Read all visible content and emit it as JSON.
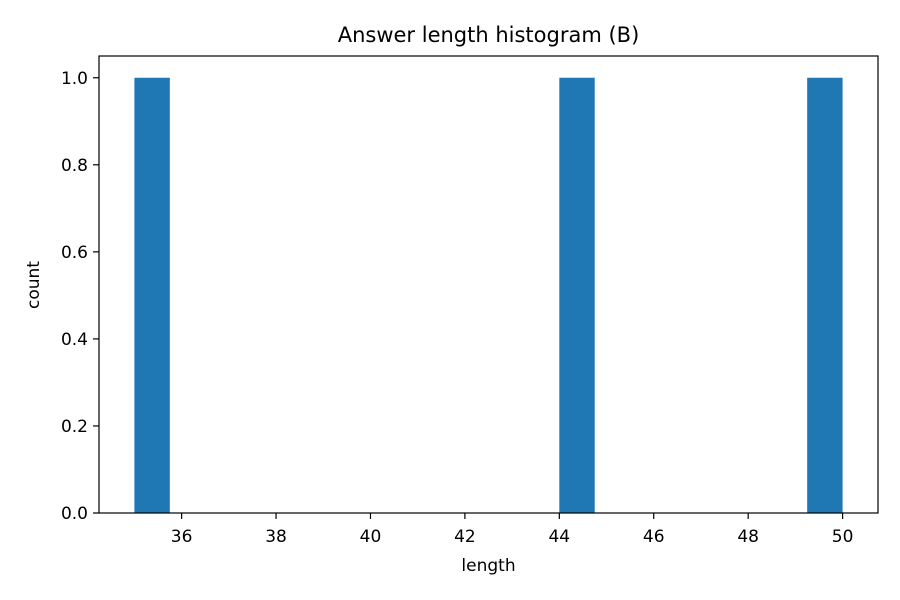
{
  "chart_data": {
    "type": "bar",
    "title": "Answer length histogram (B)",
    "xlabel": "length",
    "ylabel": "count",
    "xlim": [
      34.25,
      50.75
    ],
    "ylim": [
      0,
      1.05
    ],
    "xticks": [
      "36",
      "38",
      "40",
      "42",
      "44",
      "46",
      "48",
      "50"
    ],
    "yticks": [
      "0.0",
      "0.2",
      "0.4",
      "0.6",
      "0.8",
      "1.0"
    ],
    "bins": [
      {
        "start": 35.0,
        "end": 35.75,
        "count": 1
      },
      {
        "start": 44.0,
        "end": 44.75,
        "count": 1
      },
      {
        "start": 49.25,
        "end": 50.0,
        "count": 1
      }
    ],
    "bar_color": "#1f77b4",
    "grid": false,
    "legend": false
  }
}
